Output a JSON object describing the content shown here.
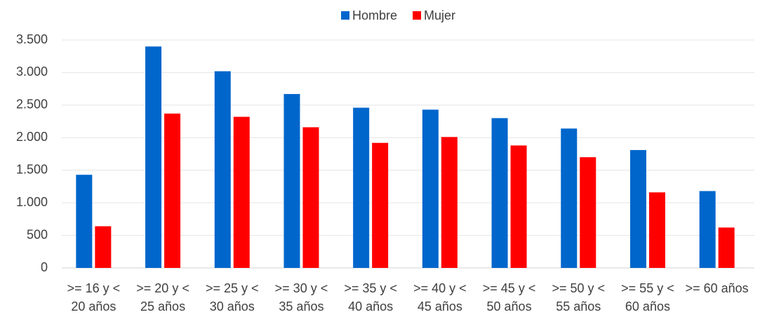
{
  "chart_data": {
    "type": "bar",
    "categories": [
      ">= 16 y < 20 años",
      ">= 20 y < 25 años",
      ">= 25 y < 30 años",
      ">= 30 y < 35 años",
      ">= 35 y < 40 años",
      ">= 40 y < 45 años",
      ">= 45 y < 50 años",
      ">= 50 y < 55 años",
      ">= 55 y < 60 años",
      ">= 60 años"
    ],
    "series": [
      {
        "name": "Hombre",
        "color": "#0066cc",
        "values": [
          1430,
          3400,
          3020,
          2670,
          2460,
          2430,
          2300,
          2140,
          1810,
          1180
        ]
      },
      {
        "name": "Mujer",
        "color": "#ff0000",
        "values": [
          640,
          2370,
          2320,
          2160,
          1920,
          2010,
          1880,
          1700,
          1160,
          620
        ]
      }
    ],
    "ylim": [
      0,
      3500
    ],
    "yticks": [
      0,
      500,
      {
        "value": 1000,
        "label": "1.000"
      },
      {
        "value": 1500,
        "label": "1.500"
      },
      {
        "value": 2000,
        "label": "2.000"
      },
      {
        "value": 2500,
        "label": "2.500"
      },
      {
        "value": 3000,
        "label": "3.000"
      },
      {
        "value": 3500,
        "label": "3.500"
      }
    ],
    "grid": true,
    "legend": "top"
  }
}
